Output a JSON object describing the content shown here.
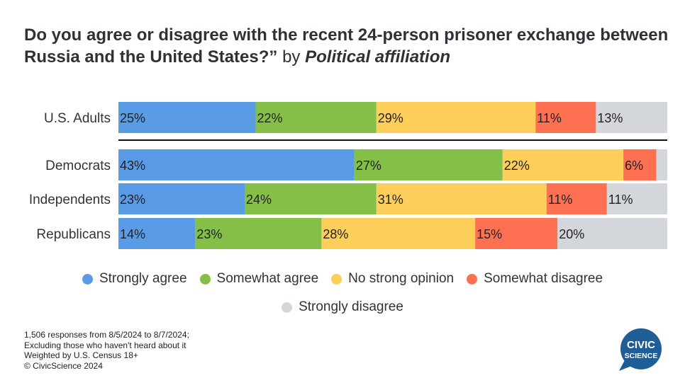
{
  "title": {
    "main": "Do you agree or disagree with the recent 24-person prisoner exchange between Russia and the United States?”",
    "by": "by",
    "affiliation": "Political affiliation"
  },
  "chart_data": {
    "type": "bar",
    "orientation": "horizontal",
    "stacked": true,
    "normalized_percent": true,
    "categories": [
      "U.S. Adults",
      "Democrats",
      "Independents",
      "Republicans"
    ],
    "series": [
      {
        "name": "Strongly agree",
        "color": "#5a9be6",
        "values": [
          25,
          43,
          23,
          14
        ],
        "labels": [
          "25%",
          "43%",
          "23%",
          "14%"
        ]
      },
      {
        "name": "Somewhat agree",
        "color": "#84bf48",
        "values": [
          22,
          27,
          24,
          23
        ],
        "labels": [
          "22%",
          "27%",
          "24%",
          "23%"
        ]
      },
      {
        "name": "No strong opinion",
        "color": "#fdcf5a",
        "values": [
          29,
          22,
          31,
          28
        ],
        "labels": [
          "29%",
          "22%",
          "31%",
          "28%"
        ]
      },
      {
        "name": "Somewhat disagree",
        "color": "#fd7152",
        "values": [
          11,
          6,
          11,
          15
        ],
        "labels": [
          "11%",
          "6%",
          "11%",
          "15%"
        ]
      },
      {
        "name": "Strongly disagree",
        "color": "#d3d6db",
        "values": [
          13,
          2,
          11,
          20
        ],
        "labels": [
          "13%",
          "",
          "11%",
          "20%"
        ]
      }
    ],
    "xlim": [
      0,
      100
    ],
    "legend_position": "bottom",
    "grid": false
  },
  "footnote": [
    "1,506 responses from 8/5/2024 to 8/7/2024;",
    "Excluding those who haven't heard about it",
    "Weighted by U.S. Census 18+",
    "© CivicScience 2024"
  ],
  "logo": {
    "line1": "CIVIC",
    "line2": "SCIENCE",
    "color": "#1f5d96"
  }
}
